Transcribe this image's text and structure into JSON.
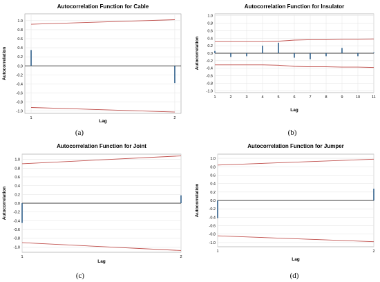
{
  "chart_data": [
    {
      "type": "bar",
      "title": "Autocorrelation Function for Cable",
      "xlabel": "Lag",
      "ylabel": "Autocorrelation",
      "caption": "(a)",
      "lags": [
        1,
        2
      ],
      "x_ticks": [
        "1",
        "2"
      ],
      "values": [
        0.35,
        -0.38
      ],
      "upper_limit": [
        0.92,
        1.02
      ],
      "lower_limit": [
        -0.92,
        -1.02
      ],
      "ylim": [
        -1.05,
        1.15
      ],
      "y_ticks": [
        1.0,
        0.8,
        0.6,
        0.4,
        0.2,
        0.0,
        -0.2,
        -0.4,
        -0.6,
        -0.8,
        -1.0
      ],
      "y_tick_labels": [
        "1.0",
        "0.8",
        "0.6",
        "0.4",
        "0.2",
        "0.0",
        "-0.2",
        "-0.4",
        "-0.6",
        "-0.8",
        "-1.0"
      ]
    },
    {
      "type": "bar",
      "title": "Autocorrelation Function for Insulator",
      "xlabel": "Lag",
      "ylabel": "Autocorrelation",
      "caption": "(b)",
      "lags": [
        1,
        2,
        3,
        4,
        5,
        6,
        7,
        8,
        9,
        10,
        11
      ],
      "x_ticks": [
        "1",
        "2",
        "3",
        "4",
        "5",
        "6",
        "7",
        "8",
        "9",
        "10",
        "11"
      ],
      "values": [
        0.06,
        -0.1,
        -0.08,
        0.2,
        0.28,
        -0.12,
        -0.16,
        -0.08,
        0.14,
        -0.08,
        0.02
      ],
      "upper_limit": [
        0.31,
        0.31,
        0.31,
        0.31,
        0.32,
        0.35,
        0.36,
        0.36,
        0.37,
        0.37,
        0.38
      ],
      "lower_limit": [
        -0.31,
        -0.31,
        -0.31,
        -0.31,
        -0.32,
        -0.35,
        -0.36,
        -0.36,
        -0.37,
        -0.37,
        -0.38
      ],
      "ylim": [
        -1.05,
        1.05
      ],
      "y_ticks": [
        1.0,
        0.8,
        0.6,
        0.4,
        0.2,
        0.0,
        -0.2,
        -0.4,
        -0.6,
        -0.8,
        -1.0
      ],
      "y_tick_labels": [
        "1.0",
        "0.8",
        "0.6",
        "0.4",
        "0.2",
        "0.0",
        "-0.2",
        "-0.4",
        "-0.6",
        "-0.8",
        "-1.0"
      ]
    },
    {
      "type": "bar",
      "title": "Autocorrelation Function for Joint",
      "xlabel": "Lag",
      "ylabel": "Autocorrelation",
      "caption": "(c)",
      "lags": [
        1,
        2
      ],
      "x_ticks": [
        "1",
        "2"
      ],
      "values": [
        -0.45,
        0.18
      ],
      "upper_limit": [
        0.9,
        1.08
      ],
      "lower_limit": [
        -0.9,
        -1.08
      ],
      "ylim": [
        -1.12,
        1.12
      ],
      "y_ticks": [
        1.0,
        0.8,
        0.6,
        0.4,
        0.2,
        0.0,
        -0.2,
        -0.4,
        -0.6,
        -0.8,
        -1.0
      ],
      "y_tick_labels": [
        "1.0",
        "0.8",
        "0.6",
        "0.4",
        "0.2",
        "0.0",
        "-0.2",
        "-0.4",
        "-0.6",
        "-0.8",
        "-1.0"
      ]
    },
    {
      "type": "bar",
      "title": "Autocorrelation Function for Jumper",
      "xlabel": "Lag",
      "ylabel": "Autocorrelation",
      "caption": "(d)",
      "lags": [
        1,
        2
      ],
      "x_ticks": [
        "1",
        "2"
      ],
      "values": [
        -0.42,
        0.28
      ],
      "upper_limit": [
        0.84,
        0.98
      ],
      "lower_limit": [
        -0.84,
        -0.98
      ],
      "ylim": [
        -1.1,
        1.1
      ],
      "y_ticks": [
        1.0,
        0.8,
        0.6,
        0.4,
        0.2,
        0.0,
        -0.2,
        -0.4,
        -0.6,
        -0.8,
        -1.0
      ],
      "y_tick_labels": [
        "1.0",
        "0.8",
        "0.6",
        "0.4",
        "0.2",
        "0.0",
        "-0.2",
        "-0.4",
        "-0.6",
        "-0.8",
        "-1.0"
      ]
    }
  ],
  "colors": {
    "bar": "#2f5f8a",
    "limit_line": "#c0504d",
    "zero_line": "#000000",
    "grid": "#e6e6e6",
    "axis": "#999999"
  }
}
